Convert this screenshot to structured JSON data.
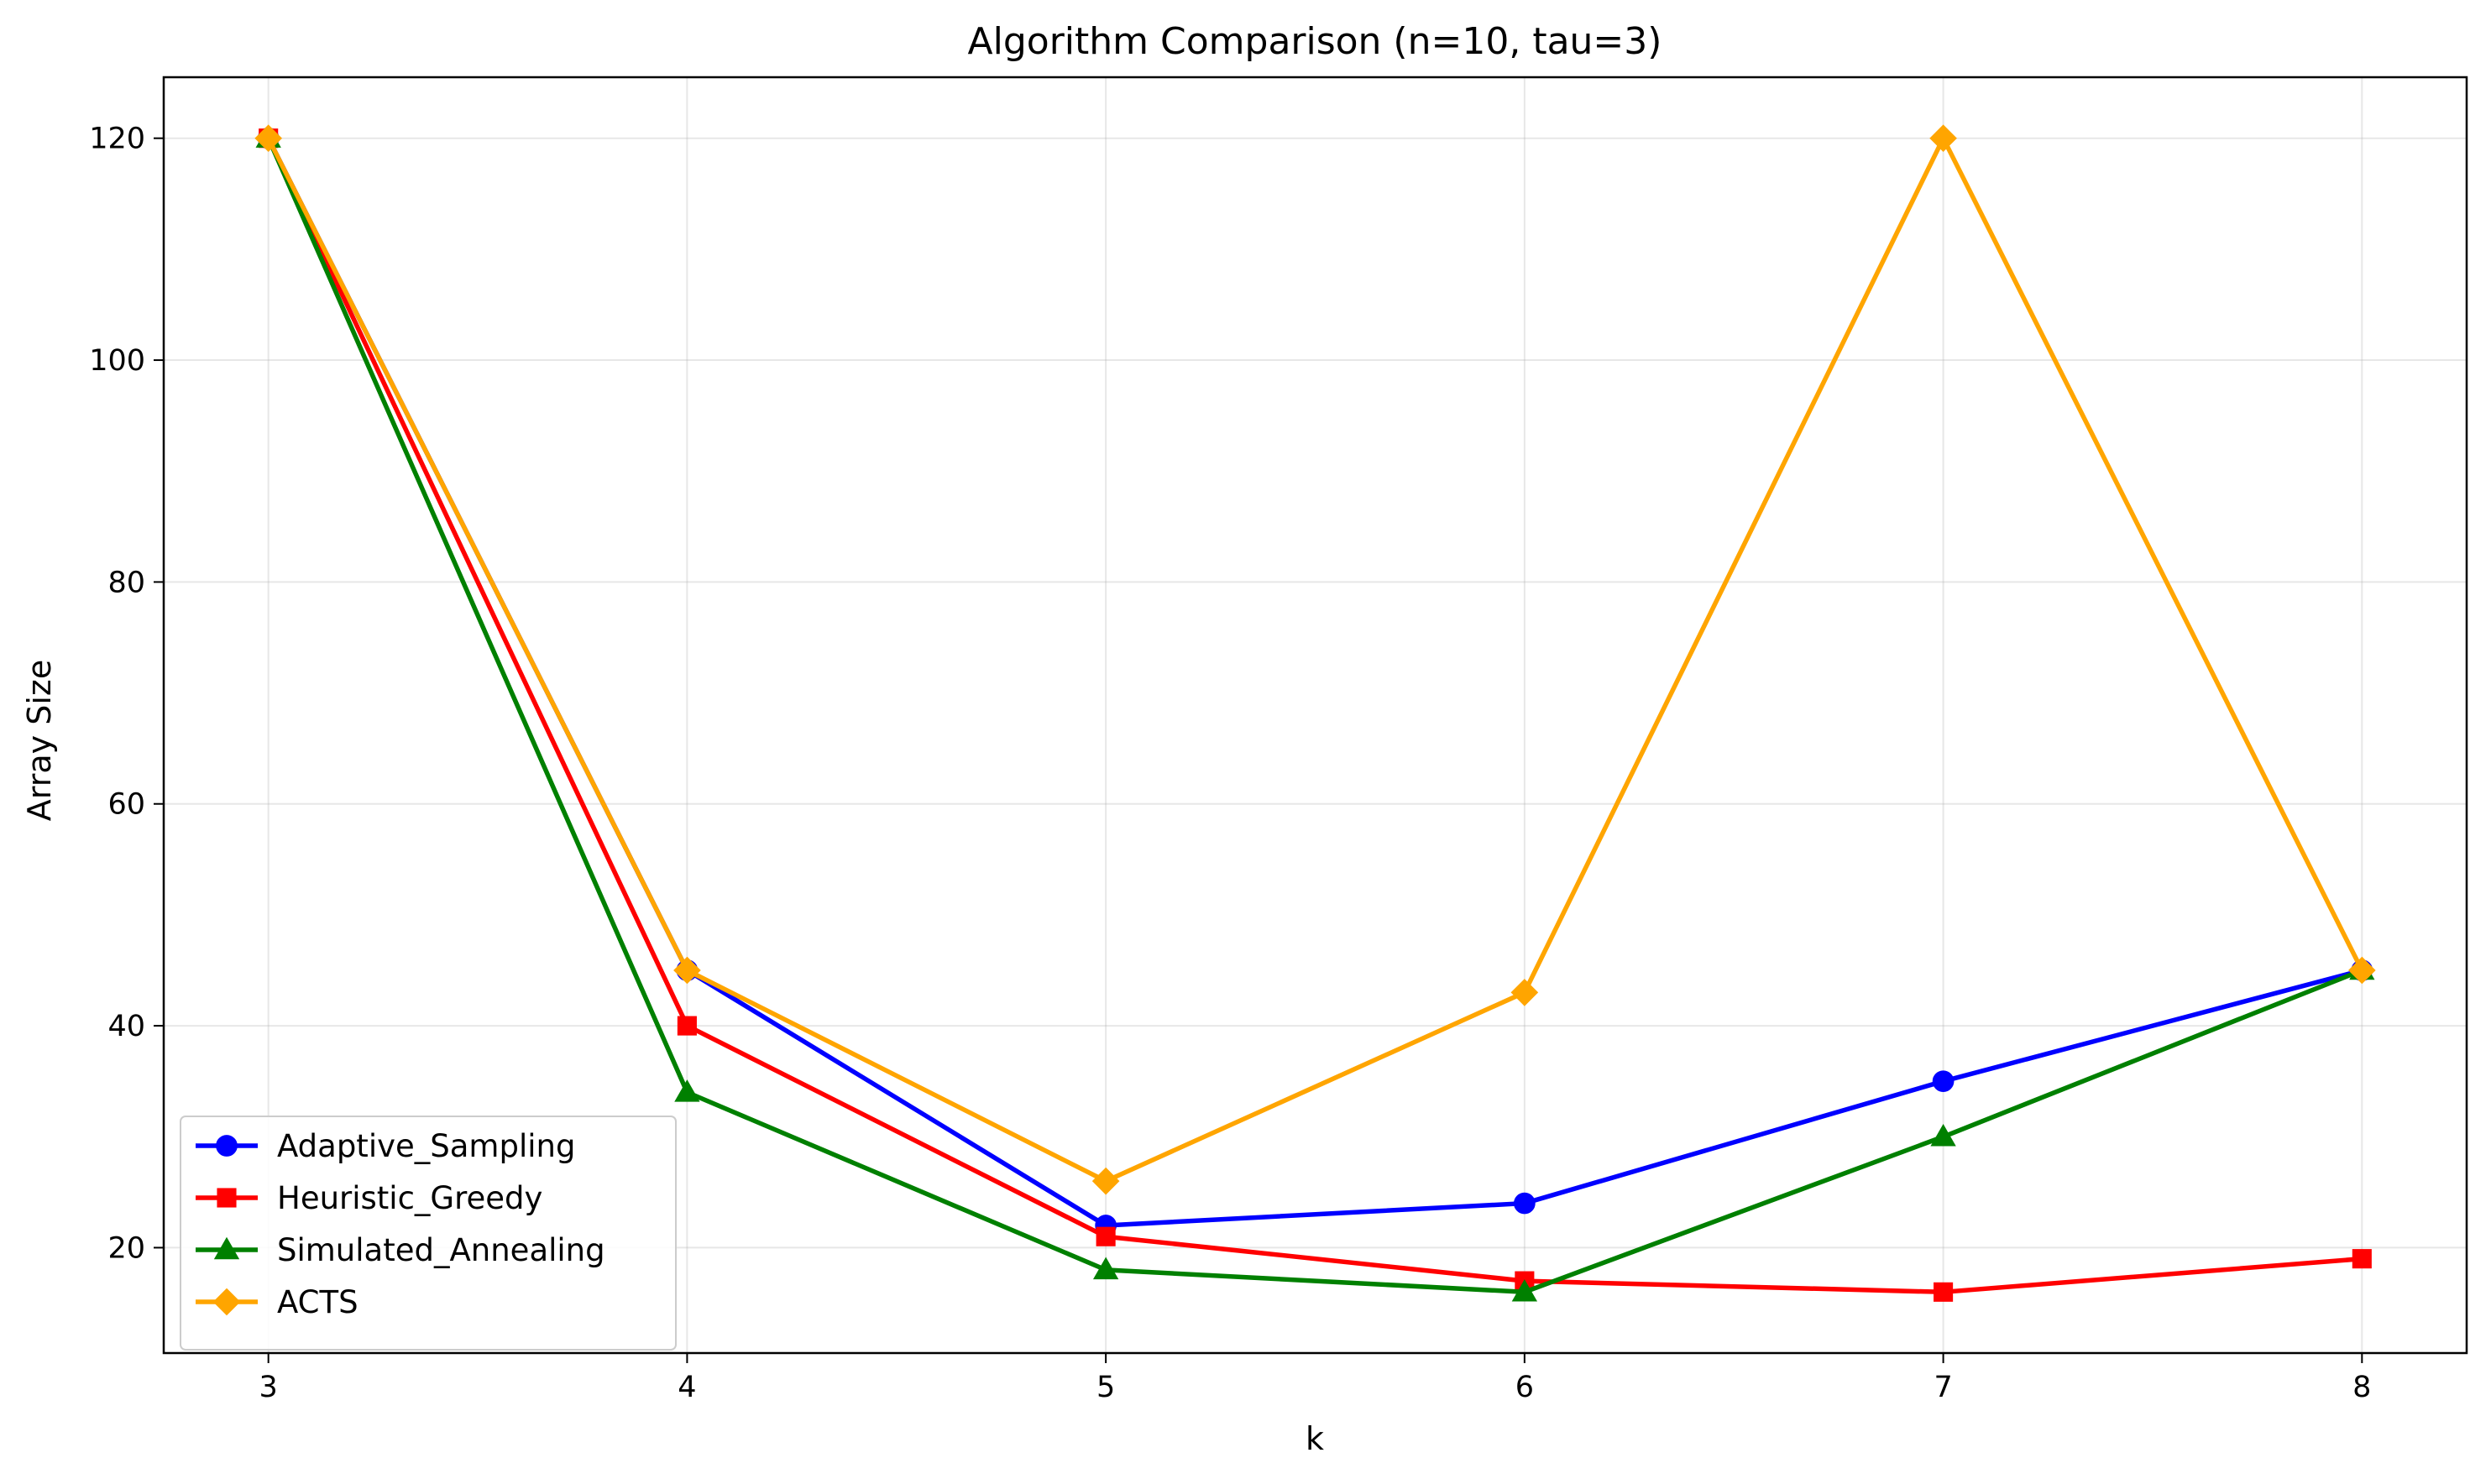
{
  "chart_data": {
    "type": "line",
    "title": "Algorithm Comparison (n=10, tau=3)",
    "xlabel": "k",
    "ylabel": "Array Size",
    "x": [
      3,
      4,
      5,
      6,
      7,
      8
    ],
    "xlim": [
      2.75,
      8.25
    ],
    "ylim": [
      10.5,
      125.5
    ],
    "xticks": [
      3,
      4,
      5,
      6,
      7,
      8
    ],
    "yticks": [
      20,
      40,
      60,
      80,
      100,
      120
    ],
    "grid": true,
    "legend_position": "lower-left",
    "series": [
      {
        "name": "Adaptive_Sampling",
        "color": "#0000ff",
        "marker": "circle",
        "values": [
          120,
          45,
          22,
          24,
          35,
          45
        ]
      },
      {
        "name": "Heuristic_Greedy",
        "color": "#ff0000",
        "marker": "square",
        "values": [
          120,
          40,
          21,
          17,
          16,
          19
        ]
      },
      {
        "name": "Simulated_Annealing",
        "color": "#008000",
        "marker": "triangle",
        "values": [
          120,
          34,
          18,
          16,
          30,
          45
        ]
      },
      {
        "name": "ACTS",
        "color": "#ffa500",
        "marker": "diamond",
        "values": [
          120,
          45,
          26,
          43,
          120,
          45
        ]
      }
    ]
  }
}
